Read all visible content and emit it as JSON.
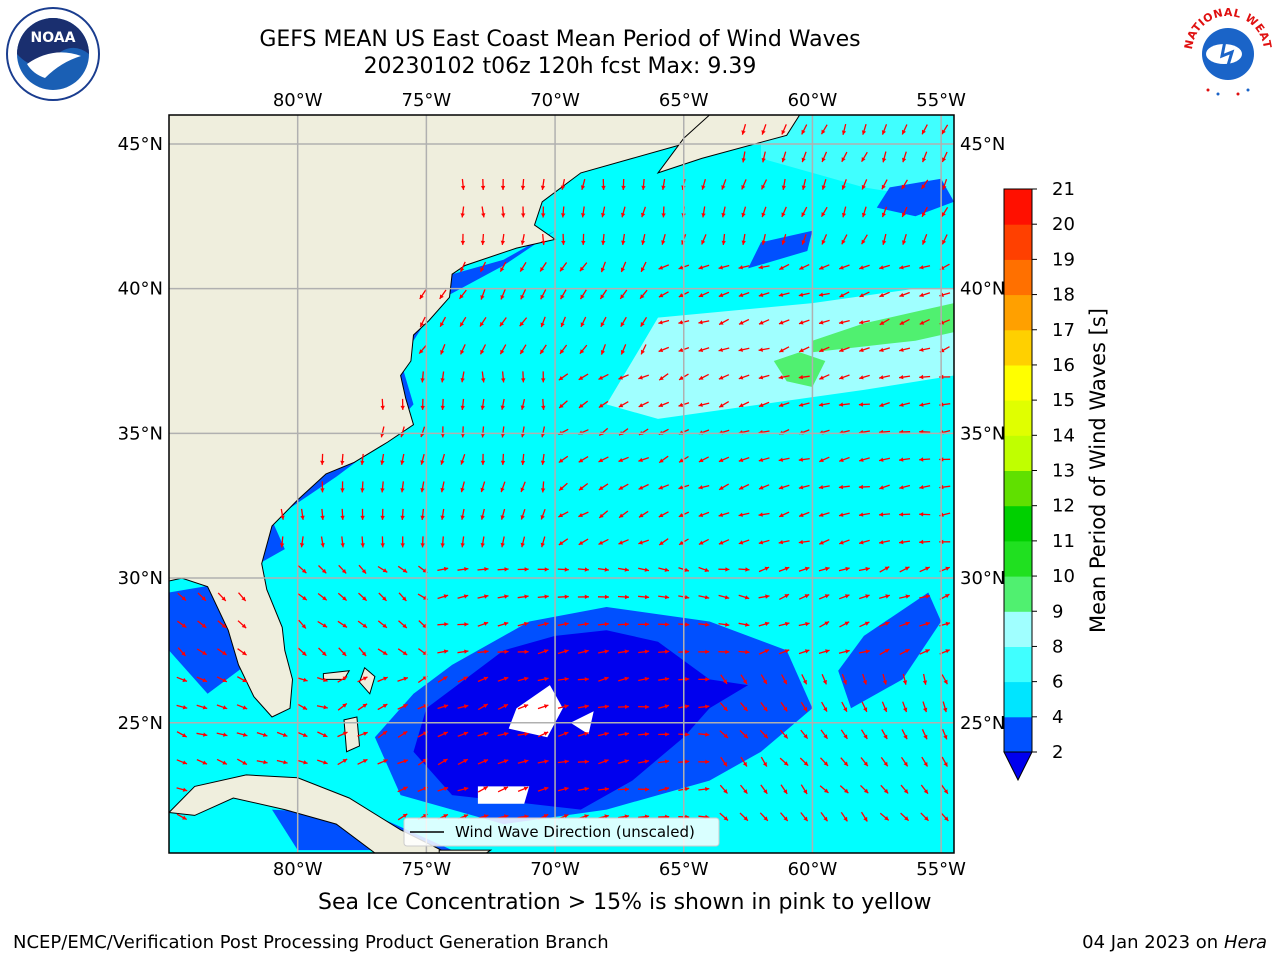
{
  "header": {
    "title": "GEFS MEAN US East Coast Mean Period of Wind Waves",
    "subtitle": "20230102 t06z 120h fcst   Max: 9.39"
  },
  "chart_data": {
    "type": "heatmap",
    "title": "GEFS MEAN US East Coast Mean Period of Wind Waves",
    "subtitle": "20230102 t06z 120h fcst   Max: 9.39",
    "lon_ticks": [
      "80°W",
      "75°W",
      "70°W",
      "65°W",
      "60°W",
      "55°W"
    ],
    "lon_values": [
      -80,
      -75,
      -70,
      -65,
      -60,
      -55
    ],
    "lat_ticks": [
      "45°N",
      "40°N",
      "35°N",
      "30°N",
      "25°N"
    ],
    "lat_values": [
      45,
      40,
      35,
      30,
      25
    ],
    "xlim": [
      -85,
      -54.5
    ],
    "ylim": [
      20.5,
      46
    ],
    "grid": true,
    "colorbar": {
      "label": "Mean Period of Wind Waves [s]",
      "ticks": [
        "2",
        "4",
        "6",
        "8",
        "9",
        "10",
        "11",
        "12",
        "13",
        "14",
        "15",
        "16",
        "17",
        "18",
        "19",
        "20",
        "21"
      ],
      "levels": [
        2,
        4,
        6,
        8,
        9,
        10,
        11,
        12,
        13,
        14,
        15,
        16,
        17,
        18,
        19,
        20,
        21
      ],
      "colors": [
        "#0050ff",
        "#00e5ff",
        "#40ffff",
        "#a0ffff",
        "#50f070",
        "#20e020",
        "#00d000",
        "#60e000",
        "#c0ff00",
        "#e0ff00",
        "#ffff00",
        "#ffd000",
        "#ffa000",
        "#ff7000",
        "#ff4000",
        "#ff1000"
      ],
      "under_color": "#0000ee"
    },
    "legend": {
      "label": "Wind Wave Direction (unscaled)",
      "position": "lower-center"
    },
    "max_value": 9.39
  },
  "colors": {
    "land": "#efeedd",
    "ocean_default": "#00ffff",
    "arrow": "#ff0000",
    "grid": "#b0b0b0"
  },
  "note": "Sea Ice Concentration > 15% is shown in pink to yellow",
  "footer": {
    "left": "NCEP/EMC/Verification Post Processing Product Generation Branch",
    "date": "04 Jan 2023 on ",
    "machine": "Hera"
  },
  "logos": {
    "noaa_text": "NOAA",
    "nws_text": "NATIONAL WEATHER SERVICE"
  }
}
